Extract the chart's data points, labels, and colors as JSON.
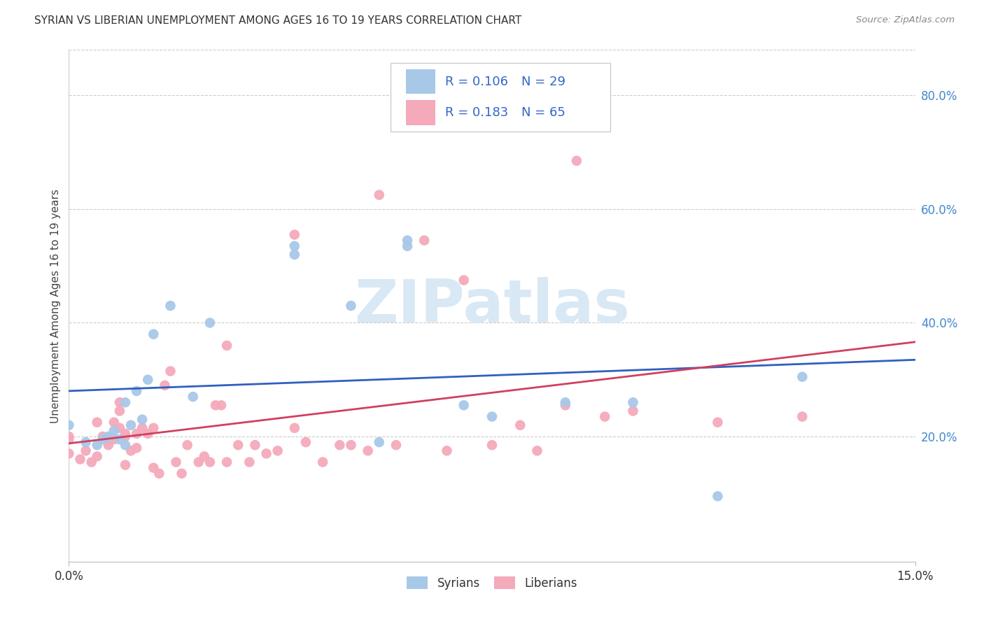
{
  "title": "SYRIAN VS LIBERIAN UNEMPLOYMENT AMONG AGES 16 TO 19 YEARS CORRELATION CHART",
  "source": "Source: ZipAtlas.com",
  "ylabel": "Unemployment Among Ages 16 to 19 years",
  "xlim": [
    0.0,
    0.15
  ],
  "ylim": [
    -0.02,
    0.88
  ],
  "xtick_vals": [
    0.0,
    0.15
  ],
  "xtick_labels": [
    "0.0%",
    "15.0%"
  ],
  "ytick_vals_right": [
    0.2,
    0.4,
    0.6,
    0.8
  ],
  "ytick_labels_right": [
    "20.0%",
    "40.0%",
    "60.0%",
    "80.0%"
  ],
  "syrian_color": "#A8C8E8",
  "liberian_color": "#F4AABB",
  "syrian_line_color": "#3060C0",
  "liberian_line_color": "#D04060",
  "background_color": "#ffffff",
  "watermark_text": "ZIPatlas",
  "watermark_color": "#D8E8F4",
  "legend_r1": "R = 0.106",
  "legend_n1": "N = 29",
  "legend_r2": "R = 0.183",
  "legend_n2": "N = 65",
  "legend_text_color": "#3366CC",
  "syrians_x": [
    0.0,
    0.003,
    0.005,
    0.006,
    0.007,
    0.008,
    0.009,
    0.01,
    0.01,
    0.011,
    0.012,
    0.013,
    0.014,
    0.015,
    0.018,
    0.022,
    0.025,
    0.04,
    0.04,
    0.05,
    0.055,
    0.06,
    0.06,
    0.07,
    0.075,
    0.088,
    0.1,
    0.115,
    0.13
  ],
  "syrians_y": [
    0.22,
    0.19,
    0.185,
    0.195,
    0.2,
    0.21,
    0.195,
    0.185,
    0.26,
    0.22,
    0.28,
    0.23,
    0.3,
    0.38,
    0.43,
    0.27,
    0.4,
    0.52,
    0.535,
    0.43,
    0.19,
    0.535,
    0.545,
    0.255,
    0.235,
    0.26,
    0.26,
    0.095,
    0.305
  ],
  "liberians_x": [
    0.0,
    0.0,
    0.0,
    0.002,
    0.003,
    0.004,
    0.005,
    0.005,
    0.006,
    0.007,
    0.007,
    0.008,
    0.008,
    0.009,
    0.009,
    0.009,
    0.01,
    0.01,
    0.01,
    0.011,
    0.012,
    0.012,
    0.013,
    0.014,
    0.015,
    0.015,
    0.016,
    0.017,
    0.018,
    0.019,
    0.02,
    0.021,
    0.023,
    0.024,
    0.025,
    0.026,
    0.027,
    0.028,
    0.028,
    0.03,
    0.032,
    0.033,
    0.035,
    0.037,
    0.04,
    0.04,
    0.042,
    0.045,
    0.048,
    0.05,
    0.053,
    0.055,
    0.058,
    0.063,
    0.067,
    0.07,
    0.075,
    0.08,
    0.083,
    0.088,
    0.09,
    0.095,
    0.1,
    0.115,
    0.13
  ],
  "liberians_y": [
    0.17,
    0.2,
    0.195,
    0.16,
    0.175,
    0.155,
    0.225,
    0.165,
    0.2,
    0.195,
    0.185,
    0.195,
    0.225,
    0.215,
    0.245,
    0.26,
    0.15,
    0.2,
    0.205,
    0.175,
    0.205,
    0.18,
    0.215,
    0.205,
    0.145,
    0.215,
    0.135,
    0.29,
    0.315,
    0.155,
    0.135,
    0.185,
    0.155,
    0.165,
    0.155,
    0.255,
    0.255,
    0.36,
    0.155,
    0.185,
    0.155,
    0.185,
    0.17,
    0.175,
    0.555,
    0.215,
    0.19,
    0.155,
    0.185,
    0.185,
    0.175,
    0.625,
    0.185,
    0.545,
    0.175,
    0.475,
    0.185,
    0.22,
    0.175,
    0.255,
    0.685,
    0.235,
    0.245,
    0.225,
    0.235
  ]
}
